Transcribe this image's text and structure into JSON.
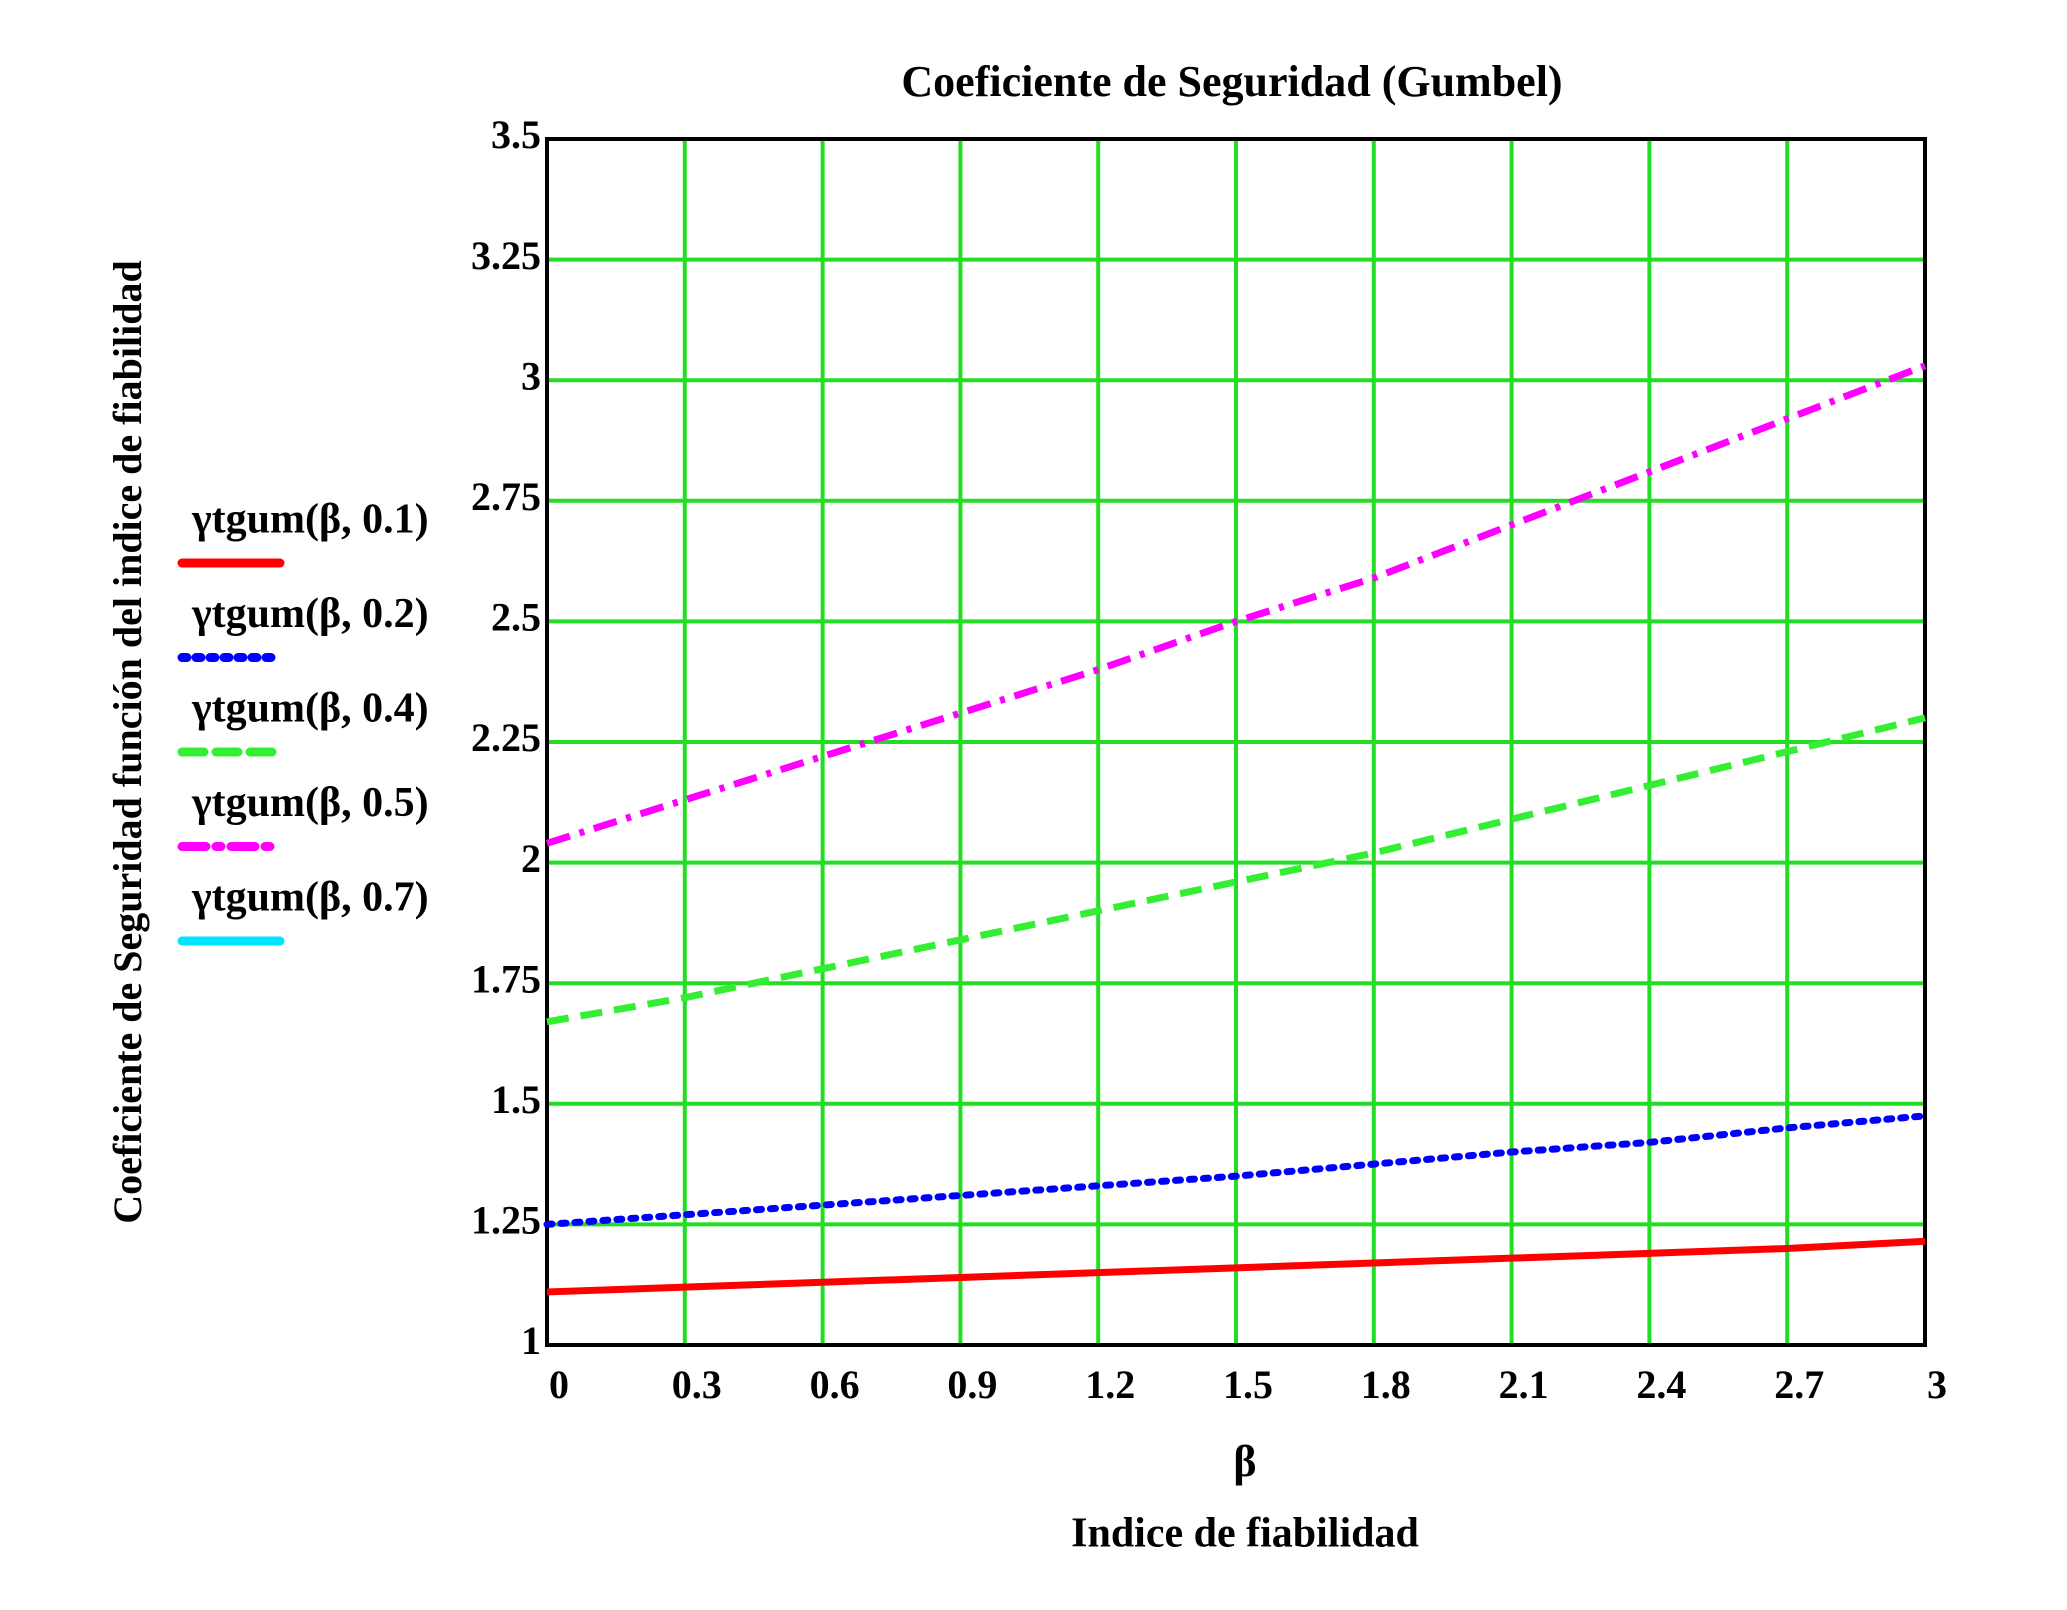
{
  "chart_data": {
    "type": "line",
    "title": "Coeficiente de Seguridad (Gumbel)",
    "xlabel": "β",
    "xlabel_caption": "Indice de fiabilidad",
    "ylabel": "Coeficiente de Seguridad función del indice de fiabilidad",
    "x": [
      0,
      0.3,
      0.6,
      0.9,
      1.2,
      1.5,
      1.8,
      2.1,
      2.4,
      2.7,
      3
    ],
    "series": [
      {
        "name": "γtgum(β, 0.1)",
        "color": "#ff0000",
        "dash": "solid",
        "values": [
          1.11,
          1.12,
          1.13,
          1.14,
          1.15,
          1.16,
          1.17,
          1.18,
          1.19,
          1.2,
          1.215
        ]
      },
      {
        "name": "γtgum(β, 0.2)",
        "color": "#0000ff",
        "dash": "dotted",
        "values": [
          1.25,
          1.27,
          1.29,
          1.31,
          1.33,
          1.35,
          1.375,
          1.4,
          1.42,
          1.45,
          1.475
        ]
      },
      {
        "name": "γtgum(β, 0.4)",
        "color": "#33ee33",
        "dash": "dashed",
        "values": [
          1.67,
          1.72,
          1.78,
          1.84,
          1.9,
          1.96,
          2.02,
          2.09,
          2.16,
          2.23,
          2.3
        ]
      },
      {
        "name": "γtgum(β, 0.5)",
        "color": "#ff00ff",
        "dash": "dashdot",
        "values": [
          2.04,
          2.13,
          2.22,
          2.31,
          2.4,
          2.5,
          2.59,
          2.7,
          2.81,
          2.92,
          3.03
        ]
      },
      {
        "name": "γtgum(β, 0.7)",
        "color": "#00e5ff",
        "dash": "solid",
        "values": [
          null,
          null,
          null,
          null,
          null,
          null,
          null,
          null,
          null,
          null,
          null
        ]
      }
    ],
    "xlim": [
      0,
      3
    ],
    "xticks": [
      0,
      0.3,
      0.6,
      0.9,
      1.2,
      1.5,
      1.8,
      2.1,
      2.4,
      2.7,
      3
    ],
    "ylim": [
      1,
      3.5
    ],
    "yticks": [
      1,
      1.25,
      1.5,
      1.75,
      2,
      2.25,
      2.5,
      2.75,
      3,
      3.25,
      3.5
    ],
    "grid": true,
    "grid_color": "#22dd22",
    "legend": "left"
  }
}
